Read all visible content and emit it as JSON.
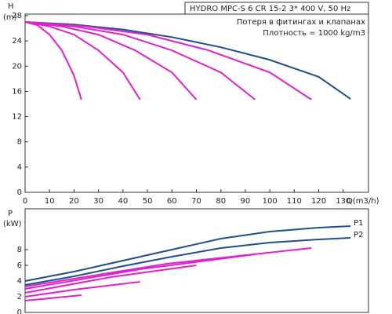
{
  "chart_data": [
    {
      "type": "line",
      "title": "HYDRO MPC-S 6 CR 15-2   3* 400 V, 50 Hz",
      "annotations": [
        "Потеря в фитингах и клапанах",
        "Плотность = 1000 kg/m3"
      ],
      "y_label": "H",
      "y_unit": "(m)",
      "x_label": "Q(m3/h)",
      "xlim": [
        0,
        140
      ],
      "xticks": [
        0,
        10,
        20,
        30,
        40,
        50,
        60,
        70,
        80,
        90,
        100,
        110,
        120,
        130
      ],
      "ylim": [
        0,
        28
      ],
      "yticks": [
        0,
        4,
        8,
        12,
        16,
        20,
        24,
        28
      ],
      "series": [
        {
          "color": "#1f4e8c",
          "x": [
            0,
            20,
            40,
            60,
            80,
            100,
            120,
            133
          ],
          "values": [
            27,
            26.6,
            25.8,
            24.6,
            23,
            21,
            18.3,
            14.8
          ]
        },
        {
          "color": "#e020d0",
          "x": [
            0,
            5,
            10,
            15,
            20,
            23
          ],
          "values": [
            27,
            26.5,
            25,
            22.5,
            18.5,
            14.7
          ]
        },
        {
          "color": "#e020d0",
          "x": [
            0,
            10,
            20,
            30,
            40,
            47
          ],
          "values": [
            27,
            26.3,
            25,
            22.5,
            19,
            14.7
          ]
        },
        {
          "color": "#e020d0",
          "x": [
            0,
            15,
            30,
            45,
            60,
            70
          ],
          "values": [
            27,
            26.3,
            25,
            22.5,
            19,
            14.7
          ]
        },
        {
          "color": "#e020d0",
          "x": [
            0,
            20,
            40,
            60,
            80,
            94
          ],
          "values": [
            27,
            26.3,
            25,
            22.5,
            19,
            14.7
          ]
        },
        {
          "color": "#e020d0",
          "x": [
            0,
            25,
            50,
            75,
            100,
            117
          ],
          "values": [
            27,
            26.3,
            25,
            22.5,
            19,
            14.7
          ]
        }
      ]
    },
    {
      "type": "line",
      "y_label": "P",
      "y_unit": "(kW)",
      "xlim": [
        0,
        140
      ],
      "ylim": [
        0,
        13
      ],
      "yticks": [
        0,
        2,
        4,
        6,
        8
      ],
      "series": [
        {
          "name": "P1",
          "color": "#1f4e8c",
          "x": [
            0,
            20,
            40,
            60,
            80,
            100,
            120,
            133
          ],
          "values": [
            4,
            5.2,
            6.6,
            8,
            9.4,
            10.3,
            10.8,
            11
          ]
        },
        {
          "name": "P2",
          "color": "#1f4e8c",
          "x": [
            0,
            20,
            40,
            60,
            80,
            100,
            120,
            133
          ],
          "values": [
            3.5,
            4.6,
            5.9,
            7.1,
            8.2,
            8.9,
            9.3,
            9.5
          ]
        },
        {
          "color": "#e020d0",
          "x": [
            0,
            10,
            23
          ],
          "values": [
            1.5,
            1.8,
            2.2
          ]
        },
        {
          "color": "#e020d0",
          "x": [
            0,
            20,
            47
          ],
          "values": [
            2,
            2.9,
            3.9
          ]
        },
        {
          "color": "#e020d0",
          "x": [
            0,
            35,
            70
          ],
          "values": [
            2.5,
            4.5,
            6
          ]
        },
        {
          "color": "#e020d0",
          "x": [
            0,
            47,
            94
          ],
          "values": [
            3,
            5.5,
            7.4
          ]
        },
        {
          "color": "#e020d0",
          "x": [
            0,
            58,
            117
          ],
          "values": [
            3.3,
            6.2,
            8.2
          ]
        }
      ]
    }
  ]
}
